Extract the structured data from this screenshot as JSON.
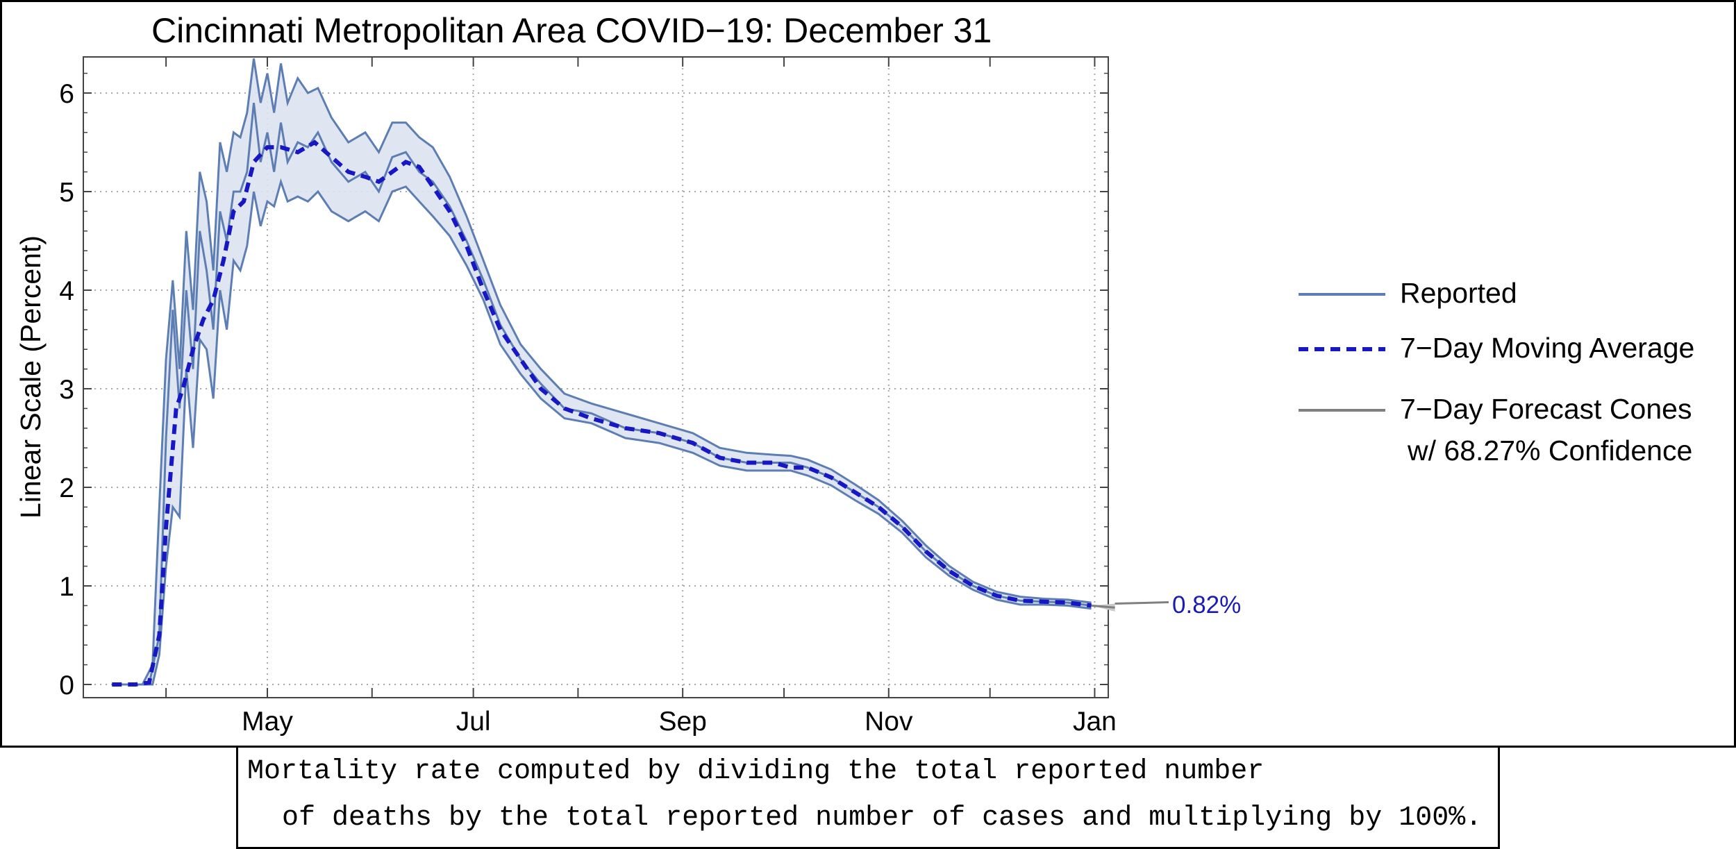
{
  "chart_data": {
    "type": "line",
    "title": "Cincinnati Metropolitan Area COVID−19: December 31",
    "ylabel": "Linear Scale (Percent)",
    "xlabel": "",
    "x_ticks": [
      "May",
      "Jul",
      "Sep",
      "Nov",
      "Jan"
    ],
    "y_ticks": [
      "0",
      "1",
      "2",
      "3",
      "4",
      "5",
      "6"
    ],
    "ylim": [
      0,
      6.3
    ],
    "xlim": [
      "2020-03-09",
      "2021-01-06"
    ],
    "grid": true,
    "legend_position": "right",
    "legend": [
      {
        "label": "Reported",
        "style": "solid",
        "color": "#5d7eb3"
      },
      {
        "label": "7−Day Moving Average",
        "style": "dashed",
        "color": "#1717c4"
      },
      {
        "label": "7−Day Forecast Cones",
        "label_line2": "w/ 68.27% Confidence",
        "style": "solid",
        "color": "#808080"
      }
    ],
    "annotation": {
      "text": "0.82%",
      "color": "#1a1ab8"
    },
    "series": [
      {
        "name": "7−Day Moving Average",
        "style": "dashed",
        "color": "#1717c4",
        "x": [
          "2020-03-16",
          "2020-03-23",
          "2020-03-27",
          "2020-03-30",
          "2020-04-01",
          "2020-04-04",
          "2020-04-06",
          "2020-04-09",
          "2020-04-12",
          "2020-04-15",
          "2020-04-18",
          "2020-04-21",
          "2020-04-24",
          "2020-04-27",
          "2020-05-01",
          "2020-05-05",
          "2020-05-10",
          "2020-05-15",
          "2020-05-20",
          "2020-05-25",
          "2020-05-30",
          "2020-06-03",
          "2020-06-07",
          "2020-06-11",
          "2020-06-15",
          "2020-06-19",
          "2020-06-24",
          "2020-06-29",
          "2020-07-04",
          "2020-07-09",
          "2020-07-15",
          "2020-07-21",
          "2020-07-28",
          "2020-08-05",
          "2020-08-15",
          "2020-08-25",
          "2020-09-04",
          "2020-09-12",
          "2020-09-20",
          "2020-09-28",
          "2020-10-03",
          "2020-10-08",
          "2020-10-15",
          "2020-10-22",
          "2020-10-29",
          "2020-11-05",
          "2020-11-12",
          "2020-11-19",
          "2020-11-26",
          "2020-12-03",
          "2020-12-10",
          "2020-12-17",
          "2020-12-24",
          "2020-12-31"
        ],
        "y": [
          0,
          0,
          0.02,
          0.5,
          1.6,
          2.8,
          3.0,
          3.4,
          3.7,
          3.9,
          4.3,
          4.8,
          4.9,
          5.3,
          5.45,
          5.45,
          5.4,
          5.5,
          5.35,
          5.2,
          5.15,
          5.1,
          5.2,
          5.3,
          5.25,
          5.05,
          4.8,
          4.45,
          4.0,
          3.6,
          3.3,
          3.0,
          2.8,
          2.7,
          2.6,
          2.55,
          2.45,
          2.3,
          2.25,
          2.25,
          2.2,
          2.2,
          2.1,
          1.95,
          1.8,
          1.6,
          1.35,
          1.15,
          1.0,
          0.9,
          0.85,
          0.84,
          0.83,
          0.8
        ]
      },
      {
        "name": "Reported",
        "style": "solid",
        "color": "#5d7eb3",
        "x": [
          "2020-03-16",
          "2020-03-23",
          "2020-03-27",
          "2020-03-30",
          "2020-04-01",
          "2020-04-03",
          "2020-04-05",
          "2020-04-07",
          "2020-04-09",
          "2020-04-11",
          "2020-04-13",
          "2020-04-15",
          "2020-04-17",
          "2020-04-19",
          "2020-04-21",
          "2020-04-23",
          "2020-04-25",
          "2020-04-27",
          "2020-04-29",
          "2020-05-01",
          "2020-05-03",
          "2020-05-05",
          "2020-05-07",
          "2020-05-10",
          "2020-05-13",
          "2020-05-16",
          "2020-05-20",
          "2020-05-25",
          "2020-05-30",
          "2020-06-03",
          "2020-06-07",
          "2020-06-11",
          "2020-06-15",
          "2020-06-19",
          "2020-06-24",
          "2020-06-29",
          "2020-07-04",
          "2020-07-09",
          "2020-07-15",
          "2020-07-21",
          "2020-07-28",
          "2020-08-05",
          "2020-08-15",
          "2020-08-25",
          "2020-09-04",
          "2020-09-12",
          "2020-09-20",
          "2020-09-28",
          "2020-10-03",
          "2020-10-08",
          "2020-10-15",
          "2020-10-22",
          "2020-10-29",
          "2020-11-05",
          "2020-11-12",
          "2020-11-19",
          "2020-11-26",
          "2020-12-03",
          "2020-12-10",
          "2020-12-17",
          "2020-12-24",
          "2020-12-31"
        ],
        "y": [
          0,
          0,
          0,
          0.5,
          2.5,
          3.8,
          2.8,
          4.0,
          3.2,
          4.6,
          4.2,
          3.6,
          4.8,
          4.5,
          5.0,
          5.0,
          5.2,
          5.9,
          5.3,
          5.6,
          5.2,
          5.7,
          5.3,
          5.5,
          5.45,
          5.6,
          5.3,
          5.1,
          5.2,
          5.0,
          5.35,
          5.4,
          5.2,
          5.1,
          4.85,
          4.5,
          4.1,
          3.65,
          3.3,
          3.05,
          2.8,
          2.75,
          2.6,
          2.55,
          2.45,
          2.3,
          2.25,
          2.25,
          2.25,
          2.2,
          2.1,
          1.95,
          1.8,
          1.6,
          1.35,
          1.15,
          1.0,
          0.9,
          0.85,
          0.84,
          0.83,
          0.8
        ]
      },
      {
        "name": "Confidence band upper",
        "style": "band",
        "color": "#5d7eb3",
        "x": [
          "2020-03-16",
          "2020-03-25",
          "2020-03-28",
          "2020-03-30",
          "2020-04-01",
          "2020-04-03",
          "2020-04-05",
          "2020-04-07",
          "2020-04-09",
          "2020-04-11",
          "2020-04-13",
          "2020-04-15",
          "2020-04-17",
          "2020-04-19",
          "2020-04-21",
          "2020-04-23",
          "2020-04-25",
          "2020-04-27",
          "2020-04-29",
          "2020-05-01",
          "2020-05-03",
          "2020-05-05",
          "2020-05-07",
          "2020-05-10",
          "2020-05-13",
          "2020-05-16",
          "2020-05-20",
          "2020-05-25",
          "2020-05-30",
          "2020-06-03",
          "2020-06-07",
          "2020-06-11",
          "2020-06-15",
          "2020-06-19",
          "2020-06-24",
          "2020-06-29",
          "2020-07-04",
          "2020-07-09",
          "2020-07-15",
          "2020-07-21",
          "2020-07-28",
          "2020-08-05",
          "2020-08-15",
          "2020-08-25",
          "2020-09-04",
          "2020-09-12",
          "2020-09-20",
          "2020-09-28",
          "2020-10-03",
          "2020-10-08",
          "2020-10-15",
          "2020-10-22",
          "2020-10-29",
          "2020-11-05",
          "2020-11-12",
          "2020-11-19",
          "2020-11-26",
          "2020-12-03",
          "2020-12-10",
          "2020-12-17",
          "2020-12-24",
          "2020-12-31"
        ],
        "y": [
          0,
          0,
          0.2,
          1.8,
          3.3,
          4.1,
          3.2,
          4.6,
          3.8,
          5.2,
          4.9,
          4.2,
          5.5,
          5.2,
          5.6,
          5.55,
          5.8,
          6.35,
          5.9,
          6.2,
          5.8,
          6.3,
          5.9,
          6.15,
          6.0,
          6.05,
          5.75,
          5.5,
          5.6,
          5.4,
          5.7,
          5.7,
          5.55,
          5.45,
          5.15,
          4.75,
          4.3,
          3.85,
          3.45,
          3.2,
          2.95,
          2.85,
          2.75,
          2.65,
          2.55,
          2.4,
          2.35,
          2.33,
          2.32,
          2.28,
          2.18,
          2.03,
          1.87,
          1.66,
          1.41,
          1.2,
          1.04,
          0.94,
          0.89,
          0.87,
          0.86,
          0.83
        ]
      },
      {
        "name": "Confidence band lower",
        "style": "band",
        "color": "#5d7eb3",
        "x": [
          "2020-03-16",
          "2020-03-25",
          "2020-03-28",
          "2020-03-30",
          "2020-04-01",
          "2020-04-03",
          "2020-04-05",
          "2020-04-07",
          "2020-04-09",
          "2020-04-11",
          "2020-04-13",
          "2020-04-15",
          "2020-04-17",
          "2020-04-19",
          "2020-04-21",
          "2020-04-23",
          "2020-04-25",
          "2020-04-27",
          "2020-04-29",
          "2020-05-01",
          "2020-05-03",
          "2020-05-05",
          "2020-05-07",
          "2020-05-10",
          "2020-05-13",
          "2020-05-16",
          "2020-05-20",
          "2020-05-25",
          "2020-05-30",
          "2020-06-03",
          "2020-06-07",
          "2020-06-11",
          "2020-06-15",
          "2020-06-19",
          "2020-06-24",
          "2020-06-29",
          "2020-07-04",
          "2020-07-09",
          "2020-07-15",
          "2020-07-21",
          "2020-07-28",
          "2020-08-05",
          "2020-08-15",
          "2020-08-25",
          "2020-09-04",
          "2020-09-12",
          "2020-09-20",
          "2020-09-28",
          "2020-10-03",
          "2020-10-08",
          "2020-10-15",
          "2020-10-22",
          "2020-10-29",
          "2020-11-05",
          "2020-11-12",
          "2020-11-19",
          "2020-11-26",
          "2020-12-03",
          "2020-12-10",
          "2020-12-17",
          "2020-12-24",
          "2020-12-31"
        ],
        "y": [
          0,
          0,
          0,
          0.3,
          1.2,
          1.8,
          1.7,
          3.2,
          2.4,
          3.5,
          3.4,
          2.9,
          4.0,
          3.6,
          4.3,
          4.2,
          4.45,
          5.0,
          4.65,
          4.9,
          4.85,
          5.1,
          4.9,
          4.95,
          4.9,
          5.0,
          4.8,
          4.7,
          4.8,
          4.7,
          5.0,
          5.05,
          4.9,
          4.75,
          4.55,
          4.25,
          3.9,
          3.45,
          3.15,
          2.9,
          2.7,
          2.65,
          2.5,
          2.45,
          2.35,
          2.22,
          2.17,
          2.17,
          2.17,
          2.12,
          2.02,
          1.87,
          1.73,
          1.54,
          1.29,
          1.1,
          0.96,
          0.86,
          0.81,
          0.81,
          0.8,
          0.77
        ]
      },
      {
        "name": "7−Day Forecast Cones",
        "style": "cone",
        "color": "#808080",
        "x": [
          "2020-12-31",
          "2021-01-07"
        ],
        "y": [
          0.8,
          0.78
        ],
        "y_upper": [
          0.8,
          0.82
        ],
        "y_lower": [
          0.8,
          0.74
        ]
      }
    ]
  },
  "footnote": {
    "line1": "Mortality rate computed by dividing the total reported number",
    "line2": "of deaths by the total reported number of cases and multiplying by 100%."
  }
}
